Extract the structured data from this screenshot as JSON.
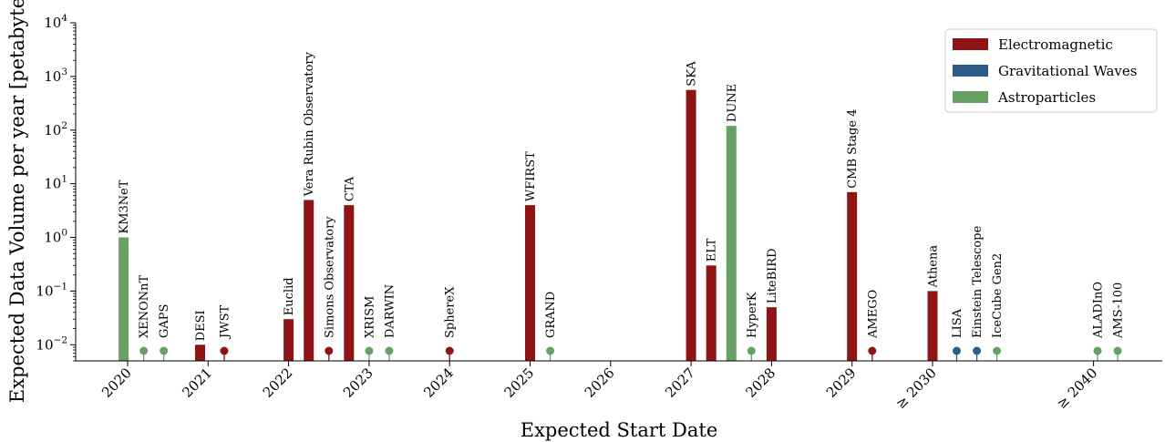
{
  "chart_data": {
    "type": "bar",
    "title": "",
    "xlabel": "Expected Start Date",
    "ylabel": "Expected Data Volume per year [petabytes]",
    "yscale": "log",
    "ylim": [
      0.005,
      10000
    ],
    "yticks": [
      {
        "value": 0.01,
        "base": "10",
        "exp": "−2"
      },
      {
        "value": 0.1,
        "base": "10",
        "exp": "−1"
      },
      {
        "value": 1,
        "base": "10",
        "exp": "0"
      },
      {
        "value": 10,
        "base": "10",
        "exp": "1"
      },
      {
        "value": 100,
        "base": "10",
        "exp": "2"
      },
      {
        "value": 1000,
        "base": "10",
        "exp": "3"
      },
      {
        "value": 10000,
        "base": "10",
        "exp": "4"
      }
    ],
    "xticks": [
      {
        "value": 2020,
        "label": "2020"
      },
      {
        "value": 2021,
        "label": "2021"
      },
      {
        "value": 2022,
        "label": "2022"
      },
      {
        "value": 2023,
        "label": "2023"
      },
      {
        "value": 2024,
        "label": "2024"
      },
      {
        "value": 2025,
        "label": "2025"
      },
      {
        "value": 2026,
        "label": "2026"
      },
      {
        "value": 2027,
        "label": "2027"
      },
      {
        "value": 2028,
        "label": "2028"
      },
      {
        "value": 2029,
        "label": "2029"
      },
      {
        "value": 2030,
        "label": "≥ 2030"
      },
      {
        "value": 2032,
        "label": "≥ 2040"
      }
    ],
    "categories_legend": [
      {
        "name": "Electromagnetic",
        "color": "#8f1414"
      },
      {
        "name": "Gravitational Waves",
        "color": "#2b5c8a"
      },
      {
        "name": "Astroparticles",
        "color": "#68a063"
      }
    ],
    "legend_placement": "top-right",
    "grid": false,
    "bars": [
      {
        "label": "KM3NeT",
        "x": 2019.95,
        "value": 1,
        "category": "Astroparticles"
      },
      {
        "label": "DESI",
        "x": 2020.9,
        "value": 0.01,
        "category": "Electromagnetic"
      },
      {
        "label": "Euclid",
        "x": 2022.0,
        "value": 0.03,
        "category": "Electromagnetic"
      },
      {
        "label": "Vera Rubin Observatory",
        "x": 2022.25,
        "value": 5,
        "category": "Electromagnetic"
      },
      {
        "label": "CTA",
        "x": 2022.75,
        "value": 4,
        "category": "Electromagnetic"
      },
      {
        "label": "WFIRST",
        "x": 2025.0,
        "value": 4,
        "category": "Electromagnetic"
      },
      {
        "label": "SKA",
        "x": 2027.0,
        "value": 560,
        "category": "Electromagnetic"
      },
      {
        "label": "ELT",
        "x": 2027.25,
        "value": 0.3,
        "category": "Electromagnetic"
      },
      {
        "label": "DUNE",
        "x": 2027.5,
        "value": 120,
        "category": "Astroparticles"
      },
      {
        "label": "LiteBIRD",
        "x": 2028.0,
        "value": 0.05,
        "category": "Electromagnetic"
      },
      {
        "label": "CMB Stage 4",
        "x": 2029.0,
        "value": 7,
        "category": "Electromagnetic"
      },
      {
        "label": "Athena",
        "x": 2030.0,
        "value": 0.1,
        "category": "Electromagnetic"
      }
    ],
    "markers": [
      {
        "label": "XENONnT",
        "x": 2020.2,
        "category": "Astroparticles"
      },
      {
        "label": "GAPS",
        "x": 2020.45,
        "category": "Astroparticles"
      },
      {
        "label": "JWST",
        "x": 2021.2,
        "category": "Electromagnetic"
      },
      {
        "label": "Simons Observatory",
        "x": 2022.5,
        "category": "Electromagnetic"
      },
      {
        "label": "XRISM",
        "x": 2023.0,
        "category": "Astroparticles"
      },
      {
        "label": "DARWIN",
        "x": 2023.25,
        "category": "Astroparticles"
      },
      {
        "label": "SphereX",
        "x": 2024.0,
        "category": "Electromagnetic"
      },
      {
        "label": "GRAND",
        "x": 2025.25,
        "category": "Astroparticles"
      },
      {
        "label": "HyperK",
        "x": 2027.75,
        "category": "Astroparticles"
      },
      {
        "label": "AMEGO",
        "x": 2029.25,
        "category": "Electromagnetic"
      },
      {
        "label": "LISA",
        "x": 2030.3,
        "category": "Gravitational Waves"
      },
      {
        "label": "Einstein Telescope",
        "x": 2030.55,
        "category": "Gravitational Waves"
      },
      {
        "label": "IceCube Gen2",
        "x": 2030.8,
        "category": "Astroparticles"
      },
      {
        "label": "ALADInO",
        "x": 2032.05,
        "category": "Astroparticles"
      },
      {
        "label": "AMS-100",
        "x": 2032.3,
        "category": "Astroparticles"
      }
    ]
  }
}
